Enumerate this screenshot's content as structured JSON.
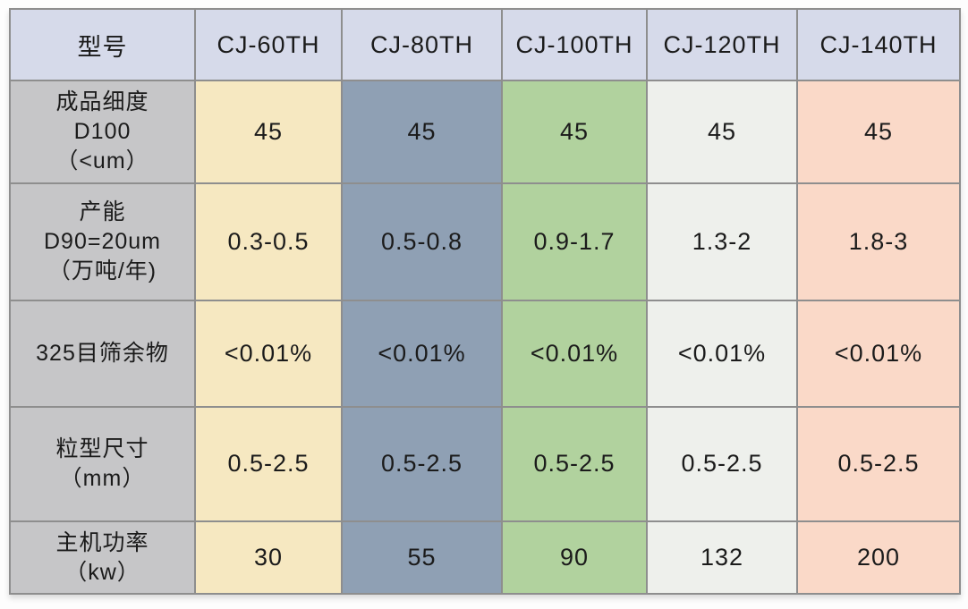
{
  "table": {
    "header": [
      "型号",
      "CJ-60TH",
      "CJ-80TH",
      "CJ-100TH",
      "CJ-120TH",
      "CJ-140TH"
    ],
    "rows": [
      {
        "label_lines": [
          "成品细度",
          "D100",
          "（<um）"
        ],
        "values": [
          "45",
          "45",
          "45",
          "45",
          "45"
        ]
      },
      {
        "label_lines": [
          "产能",
          "D90=20um",
          "（万吨/年)"
        ],
        "values": [
          "0.3-0.5",
          "0.5-0.8",
          "0.9-1.7",
          "1.3-2",
          "1.8-3"
        ]
      },
      {
        "label_lines": [
          "325目筛余物"
        ],
        "values": [
          "<0.01%",
          "<0.01%",
          "<0.01%",
          "<0.01%",
          "<0.01%"
        ]
      },
      {
        "label_lines": [
          "粒型尺寸",
          "（mm）"
        ],
        "values": [
          "0.5-2.5",
          "0.5-2.5",
          "0.5-2.5",
          "0.5-2.5",
          "0.5-2.5"
        ]
      },
      {
        "label_lines": [
          "主机功率",
          "（kw）"
        ],
        "values": [
          "30",
          "55",
          "90",
          "132",
          "200"
        ]
      }
    ]
  },
  "colors": {
    "header_bg": "#d6daea",
    "label_column_bg": "#c6c6c8",
    "col_cj60_bg": "#f6e8c1",
    "col_cj80_bg": "#8fa0b4",
    "col_cj100_bg": "#b1d29e",
    "col_cj120_bg": "#eef0ec",
    "col_cj140_bg": "#fad9c8",
    "border": "#8e8e8e",
    "text": "#1b1b1b"
  },
  "chart_data": {
    "type": "table",
    "title": "",
    "categories": [
      "CJ-60TH",
      "CJ-80TH",
      "CJ-100TH",
      "CJ-120TH",
      "CJ-140TH"
    ],
    "series": [
      {
        "name": "成品细度 D100（<um）",
        "values": [
          "45",
          "45",
          "45",
          "45",
          "45"
        ]
      },
      {
        "name": "产能 D90=20um（万吨/年)",
        "values": [
          "0.3-0.5",
          "0.5-0.8",
          "0.9-1.7",
          "1.3-2",
          "1.8-3"
        ]
      },
      {
        "name": "325目筛余物",
        "values": [
          "<0.01%",
          "<0.01%",
          "<0.01%",
          "<0.01%",
          "<0.01%"
        ]
      },
      {
        "name": "粒型尺寸（mm）",
        "values": [
          "0.5-2.5",
          "0.5-2.5",
          "0.5-2.5",
          "0.5-2.5",
          "0.5-2.5"
        ]
      },
      {
        "name": "主机功率（kw）",
        "values": [
          "30",
          "55",
          "90",
          "132",
          "200"
        ]
      }
    ],
    "layout": {
      "header_row": true,
      "label_column": true,
      "grid": true
    }
  }
}
